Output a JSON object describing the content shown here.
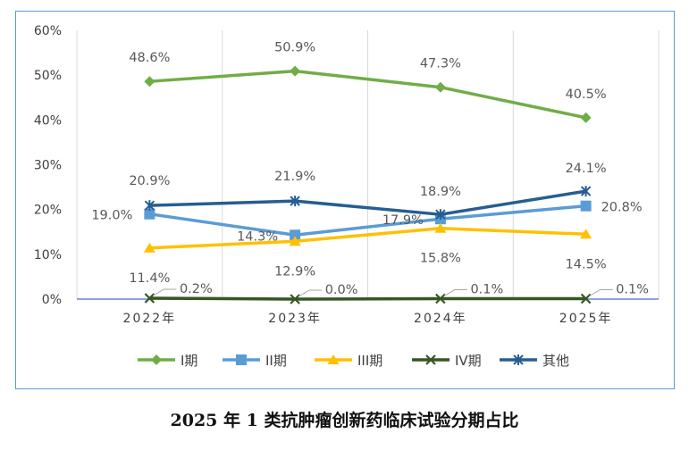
{
  "caption": "2025 年 1 类抗肿瘤创新药临床试验分期占比",
  "chart_data": {
    "type": "line",
    "title": "",
    "xlabel": "",
    "ylabel": "",
    "categories": [
      "2022年",
      "2023年",
      "2024年",
      "2025年"
    ],
    "ylim": [
      0,
      60
    ],
    "yticks": [
      "0%",
      "10%",
      "20%",
      "30%",
      "40%",
      "50%",
      "60%"
    ],
    "grid": "vertical",
    "legend_position": "bottom",
    "series": [
      {
        "name": "I期",
        "values": [
          48.6,
          50.9,
          47.3,
          40.5
        ],
        "labels": [
          "48.6%",
          "50.9%",
          "47.3%",
          "40.5%"
        ],
        "color": "#70ad47",
        "marker": "diamond"
      },
      {
        "name": "II期",
        "values": [
          19.0,
          14.3,
          17.9,
          20.8
        ],
        "labels": [
          "19.0%",
          "14.3%",
          "17.9%",
          "20.8%"
        ],
        "color": "#5b9bd5",
        "marker": "square"
      },
      {
        "name": "III期",
        "values": [
          11.4,
          12.9,
          15.8,
          14.5
        ],
        "labels": [
          "11.4%",
          "12.9%",
          "15.8%",
          "14.5%"
        ],
        "color": "#ffc000",
        "marker": "triangle"
      },
      {
        "name": "IV期",
        "values": [
          0.2,
          0.0,
          0.1,
          0.1
        ],
        "labels": [
          "0.2%",
          "0.0%",
          "0.1%",
          "0.1%"
        ],
        "color": "#375623",
        "marker": "x"
      },
      {
        "name": "其他",
        "values": [
          20.9,
          21.9,
          18.9,
          24.1
        ],
        "labels": [
          "20.9%",
          "21.9%",
          "18.9%",
          "24.1%"
        ],
        "color": "#255e91",
        "marker": "star"
      }
    ]
  }
}
